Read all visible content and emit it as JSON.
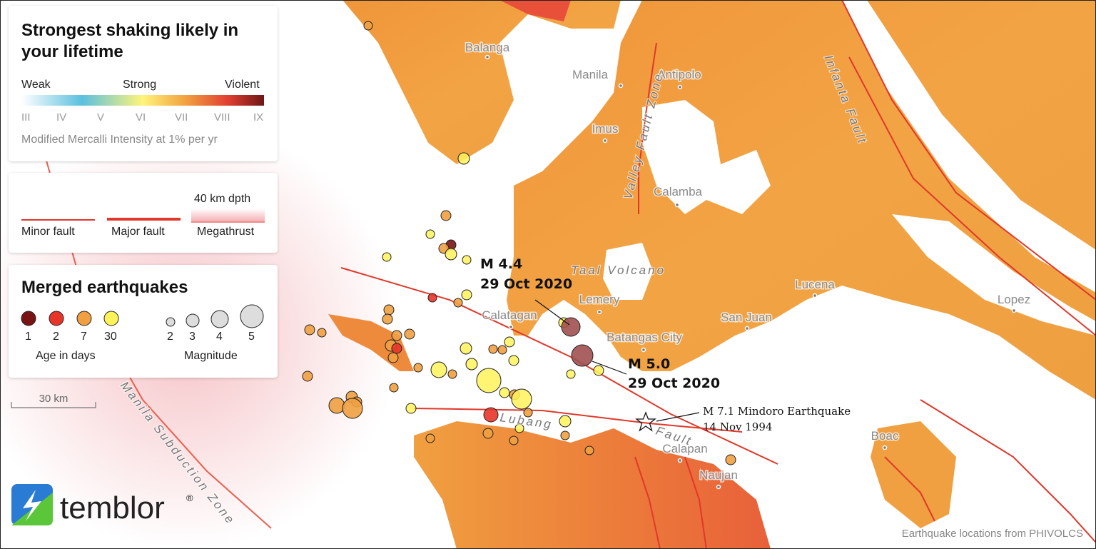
{
  "legend": {
    "title": "Strongest shaking likely in your lifetime",
    "scale_labels": [
      "Weak",
      "Strong",
      "Violent"
    ],
    "intensities": [
      "III",
      "IV",
      "V",
      "VI",
      "VII",
      "VIII",
      "IX"
    ],
    "caption": "Modified Mercalli Intensity at 1% per yr"
  },
  "faults_legend": {
    "depth": "40 km dpth",
    "items": [
      "Minor fault",
      "Major fault",
      "Megathrust"
    ]
  },
  "quakes_legend": {
    "title": "Merged earthquakes",
    "ages": [
      "1",
      "2",
      "7",
      "30"
    ],
    "age_caption": "Age in days",
    "magnitudes": [
      "2",
      "3",
      "4",
      "5"
    ],
    "magnitude_caption": "Magnitude"
  },
  "scale_bar": "30 km",
  "places": [
    "Balanga",
    "Manila",
    "Antipolo",
    "Imus",
    "Calamba",
    "Lemery",
    "Calatagan",
    "Batangas City",
    "San Juan",
    "Lucena",
    "Lopez",
    "Boac",
    "Calapan",
    "Naujan"
  ],
  "features": [
    "Valley Fault Zone",
    "Infanta Fault",
    "Taal Volcano",
    "Lubang",
    "Fault",
    "Manila Subduction Zone"
  ],
  "annotations": [
    {
      "magnitude": "M 4.4",
      "date": "29 Oct 2020"
    },
    {
      "magnitude": "M 5.0",
      "date": "29 Oct 2020"
    },
    {
      "magnitude": "M 7.1 Mindoro Earthquake",
      "date": "14 Nov 1994"
    }
  ],
  "logo": "temblor",
  "logo_mark": "®",
  "credit": "Earthquake locations from PHIVOLCS"
}
